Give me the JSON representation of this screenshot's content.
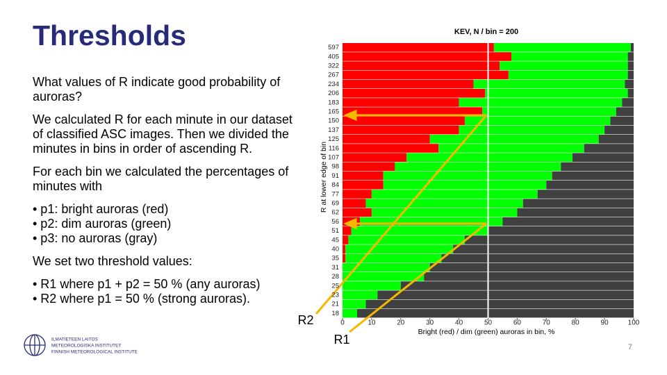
{
  "slide": {
    "title": "Thresholds",
    "paragraphs": [
      "What values of R indicate good probability of auroras?",
      "We calculated R for each minute in our dataset of classified ASC images. Then we divided the minutes in bins in order of ascending R.",
      "For each bin we calculated the percentages of minutes with",
      "We set two threshold values:"
    ],
    "bullets_1": [
      "• p1: bright auroras (red)",
      "• p2: dim auroras (green)",
      "• p3: no auroras (gray)"
    ],
    "bullets_2": [
      "• R1 where p1 + p2 = 50 % (any auroras)",
      "• R2 where p1 = 50 % (strong auroras)."
    ],
    "annotations": [
      "R2",
      "R1"
    ],
    "logo": [
      "ILMATIETEEN LAITOS",
      "METEOROLOGISKA INSTITUTET",
      "FINNISH METEOROLOGICAL INSTITUTE"
    ],
    "page_number": "7"
  },
  "chart_data": {
    "type": "stacked-barh",
    "title": "KEV, N / bin = 200",
    "xlabel": "Bright (red) / dim (green) auroras in bin, %",
    "ylabel": "R at lower edge of bin",
    "categories": [
      "597",
      "405",
      "322",
      "267",
      "234",
      "206",
      "183",
      "165",
      "150",
      "137",
      "125",
      "116",
      "107",
      "98",
      "91",
      "84",
      "77",
      "69",
      "62",
      "56",
      "51",
      "45",
      "40",
      "35",
      "31",
      "28",
      "25",
      "23",
      "21",
      "18"
    ],
    "series": [
      {
        "color": "#ff0000",
        "values": [
          52,
          58,
          54,
          57,
          45,
          49,
          40,
          48,
          42,
          40,
          30,
          33,
          22,
          18,
          14,
          14,
          10,
          8,
          10,
          6,
          3,
          2,
          1,
          1,
          0,
          0,
          0,
          0,
          0,
          0
        ]
      },
      {
        "color": "#00ff00",
        "values": [
          47,
          40,
          44,
          41,
          52,
          49,
          56,
          46,
          50,
          50,
          58,
          50,
          57,
          57,
          58,
          56,
          57,
          54,
          50,
          49,
          47,
          40,
          37,
          33,
          30,
          28,
          20,
          12,
          8,
          5
        ]
      },
      {
        "color": "#404040",
        "values": [
          1,
          2,
          2,
          2,
          3,
          2,
          4,
          6,
          8,
          10,
          12,
          17,
          21,
          25,
          28,
          30,
          33,
          38,
          40,
          45,
          50,
          58,
          62,
          66,
          70,
          72,
          80,
          88,
          92,
          95
        ]
      }
    ],
    "xlim": [
      0,
      100
    ],
    "xticks": [
      0,
      10,
      20,
      30,
      40,
      50,
      60,
      70,
      80,
      90,
      100
    ],
    "vline": 50,
    "vline_color": "#ffffff"
  }
}
